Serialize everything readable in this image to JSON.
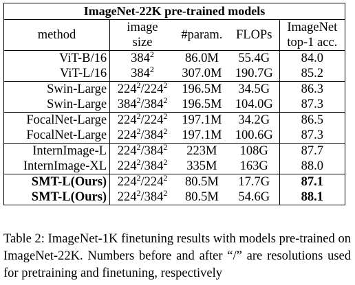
{
  "table": {
    "title": "ImageNet-22K pre-trained models",
    "headers": {
      "method": "method",
      "image_size_l1": "image",
      "image_size_l2": "size",
      "params": "#param.",
      "flops": "FLOPs",
      "acc_l1": "ImageNet",
      "acc_l2": "top-1 acc."
    },
    "rows": [
      {
        "method": "ViT-B/16",
        "size": [
          [
            "384",
            "2"
          ]
        ],
        "params": "86.0M",
        "flops": "55.4G",
        "acc": "84.0"
      },
      {
        "method": "ViT-L/16",
        "size": [
          [
            "384",
            "2"
          ]
        ],
        "params": "307.0M",
        "flops": "190.7G",
        "acc": "85.2"
      },
      {
        "method": "Swin-Large",
        "size": [
          [
            "224",
            "2"
          ],
          [
            "/",
            ""
          ],
          [
            "224",
            "2"
          ]
        ],
        "params": "196.5M",
        "flops": "34.5G",
        "acc": "86.3"
      },
      {
        "method": "Swin-Large",
        "size": [
          [
            "384",
            "2"
          ],
          [
            "/",
            ""
          ],
          [
            "384",
            "2"
          ]
        ],
        "params": "196.5M",
        "flops": "104.0G",
        "acc": "87.3"
      },
      {
        "method": "FocalNet-Large",
        "size": [
          [
            "224",
            "2"
          ],
          [
            "/",
            ""
          ],
          [
            "224",
            "2"
          ]
        ],
        "params": "197.1M",
        "flops": "34.2G",
        "acc": "86.5"
      },
      {
        "method": "FocalNet-Large",
        "size": [
          [
            "224",
            "2"
          ],
          [
            "/",
            ""
          ],
          [
            "384",
            "2"
          ]
        ],
        "params": "197.1M",
        "flops": "100.6G",
        "acc": "87.3"
      },
      {
        "method": "InternImage-L",
        "size": [
          [
            "224",
            "2"
          ],
          [
            "/",
            ""
          ],
          [
            "384",
            "2"
          ]
        ],
        "params": "223M",
        "flops": "108G",
        "acc": "87.7"
      },
      {
        "method": "InternImage-XL",
        "size": [
          [
            "224",
            "2"
          ],
          [
            "/",
            ""
          ],
          [
            "384",
            "2"
          ]
        ],
        "params": "335M",
        "flops": "163G",
        "acc": "88.0"
      },
      {
        "method": "SMT-L(Ours)",
        "size": [
          [
            "224",
            "2"
          ],
          [
            "/",
            ""
          ],
          [
            "224",
            "2"
          ]
        ],
        "params": "80.5M",
        "flops": "17.7G",
        "acc": "87.1"
      },
      {
        "method": "SMT-L(Ours)",
        "size": [
          [
            "224",
            "2"
          ],
          [
            "/",
            ""
          ],
          [
            "384",
            "2"
          ]
        ],
        "params": "80.5M",
        "flops": "54.6G",
        "acc": "88.1"
      }
    ]
  },
  "caption": {
    "label": "Table 2:",
    "text": "ImageNet-1K finetuning results with models pre-trained on ImageNet-22K. Numbers before and after “/” are resolutions used for pretraining and finetuning, respectively"
  }
}
